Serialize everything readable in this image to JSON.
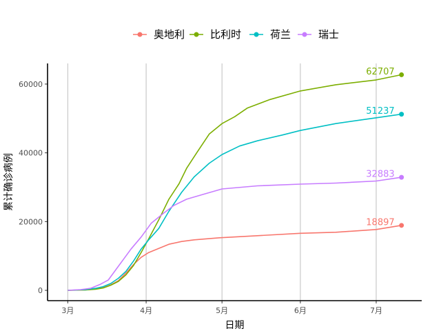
{
  "chart_data": {
    "type": "line",
    "xlabel": "日期",
    "ylabel": "累计确诊病例",
    "x_ticks": [
      {
        "date": "2020-03-01",
        "label": "3月"
      },
      {
        "date": "2020-04-01",
        "label": "4月"
      },
      {
        "date": "2020-05-01",
        "label": "5月"
      },
      {
        "date": "2020-06-01",
        "label": "6月"
      },
      {
        "date": "2020-07-01",
        "label": "7月"
      }
    ],
    "y_ticks": [
      0,
      20000,
      40000,
      60000
    ],
    "xlim": [
      "2020-02-22",
      "2020-07-19"
    ],
    "ylim": [
      -3000,
      66000
    ],
    "grid": "vertical",
    "legend_position": "top",
    "series": [
      {
        "name": "奥地利",
        "color": "#F8766D",
        "end_label": "18897",
        "points": [
          [
            "2020-03-01",
            0
          ],
          [
            "2020-03-08",
            100
          ],
          [
            "2020-03-12",
            400
          ],
          [
            "2020-03-15",
            800
          ],
          [
            "2020-03-18",
            1600
          ],
          [
            "2020-03-21",
            2800
          ],
          [
            "2020-03-24",
            5000
          ],
          [
            "2020-03-27",
            7500
          ],
          [
            "2020-03-30",
            9600
          ],
          [
            "2020-04-02",
            11000
          ],
          [
            "2020-04-06",
            12200
          ],
          [
            "2020-04-10",
            13400
          ],
          [
            "2020-04-15",
            14200
          ],
          [
            "2020-04-20",
            14700
          ],
          [
            "2020-04-30",
            15300
          ],
          [
            "2020-05-15",
            15900
          ],
          [
            "2020-06-01",
            16600
          ],
          [
            "2020-06-15",
            16900
          ],
          [
            "2020-07-01",
            17700
          ],
          [
            "2020-07-11",
            18897
          ]
        ]
      },
      {
        "name": "比利时",
        "color": "#7CAE00",
        "end_label": "62707",
        "points": [
          [
            "2020-03-01",
            0
          ],
          [
            "2020-03-08",
            100
          ],
          [
            "2020-03-12",
            300
          ],
          [
            "2020-03-15",
            700
          ],
          [
            "2020-03-18",
            1500
          ],
          [
            "2020-03-21",
            2600
          ],
          [
            "2020-03-24",
            4500
          ],
          [
            "2020-03-27",
            7200
          ],
          [
            "2020-03-30",
            11000
          ],
          [
            "2020-04-02",
            15000
          ],
          [
            "2020-04-06",
            20500
          ],
          [
            "2020-04-10",
            26500
          ],
          [
            "2020-04-14",
            31000
          ],
          [
            "2020-04-17",
            35500
          ],
          [
            "2020-04-21",
            40000
          ],
          [
            "2020-04-26",
            45500
          ],
          [
            "2020-05-01",
            48500
          ],
          [
            "2020-05-06",
            50500
          ],
          [
            "2020-05-11",
            53000
          ],
          [
            "2020-05-20",
            55500
          ],
          [
            "2020-06-01",
            58000
          ],
          [
            "2020-06-15",
            59800
          ],
          [
            "2020-07-01",
            61200
          ],
          [
            "2020-07-11",
            62707
          ]
        ]
      },
      {
        "name": "荷兰",
        "color": "#00BFC4",
        "end_label": "51237",
        "points": [
          [
            "2020-03-01",
            0
          ],
          [
            "2020-03-08",
            200
          ],
          [
            "2020-03-12",
            600
          ],
          [
            "2020-03-15",
            1100
          ],
          [
            "2020-03-18",
            2000
          ],
          [
            "2020-03-21",
            3500
          ],
          [
            "2020-03-24",
            5500
          ],
          [
            "2020-03-27",
            8500
          ],
          [
            "2020-03-30",
            12000
          ],
          [
            "2020-04-02",
            14700
          ],
          [
            "2020-04-06",
            18000
          ],
          [
            "2020-04-10",
            23000
          ],
          [
            "2020-04-15",
            28500
          ],
          [
            "2020-04-20",
            33000
          ],
          [
            "2020-04-26",
            37000
          ],
          [
            "2020-05-01",
            39500
          ],
          [
            "2020-05-08",
            42000
          ],
          [
            "2020-05-15",
            43500
          ],
          [
            "2020-05-25",
            45200
          ],
          [
            "2020-06-01",
            46500
          ],
          [
            "2020-06-15",
            48500
          ],
          [
            "2020-07-01",
            50200
          ],
          [
            "2020-07-11",
            51237
          ]
        ]
      },
      {
        "name": "瑞士",
        "color": "#C77CFF",
        "end_label": "32883",
        "points": [
          [
            "2020-03-01",
            0
          ],
          [
            "2020-03-06",
            200
          ],
          [
            "2020-03-10",
            600
          ],
          [
            "2020-03-14",
            1800
          ],
          [
            "2020-03-17",
            3000
          ],
          [
            "2020-03-20",
            6000
          ],
          [
            "2020-03-23",
            9000
          ],
          [
            "2020-03-26",
            12000
          ],
          [
            "2020-03-30",
            15500
          ],
          [
            "2020-04-03",
            19500
          ],
          [
            "2020-04-08",
            22500
          ],
          [
            "2020-04-12",
            24700
          ],
          [
            "2020-04-17",
            26500
          ],
          [
            "2020-04-24",
            28000
          ],
          [
            "2020-05-01",
            29500
          ],
          [
            "2020-05-15",
            30400
          ],
          [
            "2020-06-01",
            30900
          ],
          [
            "2020-06-15",
            31200
          ],
          [
            "2020-07-01",
            31800
          ],
          [
            "2020-07-11",
            32883
          ]
        ]
      }
    ]
  }
}
